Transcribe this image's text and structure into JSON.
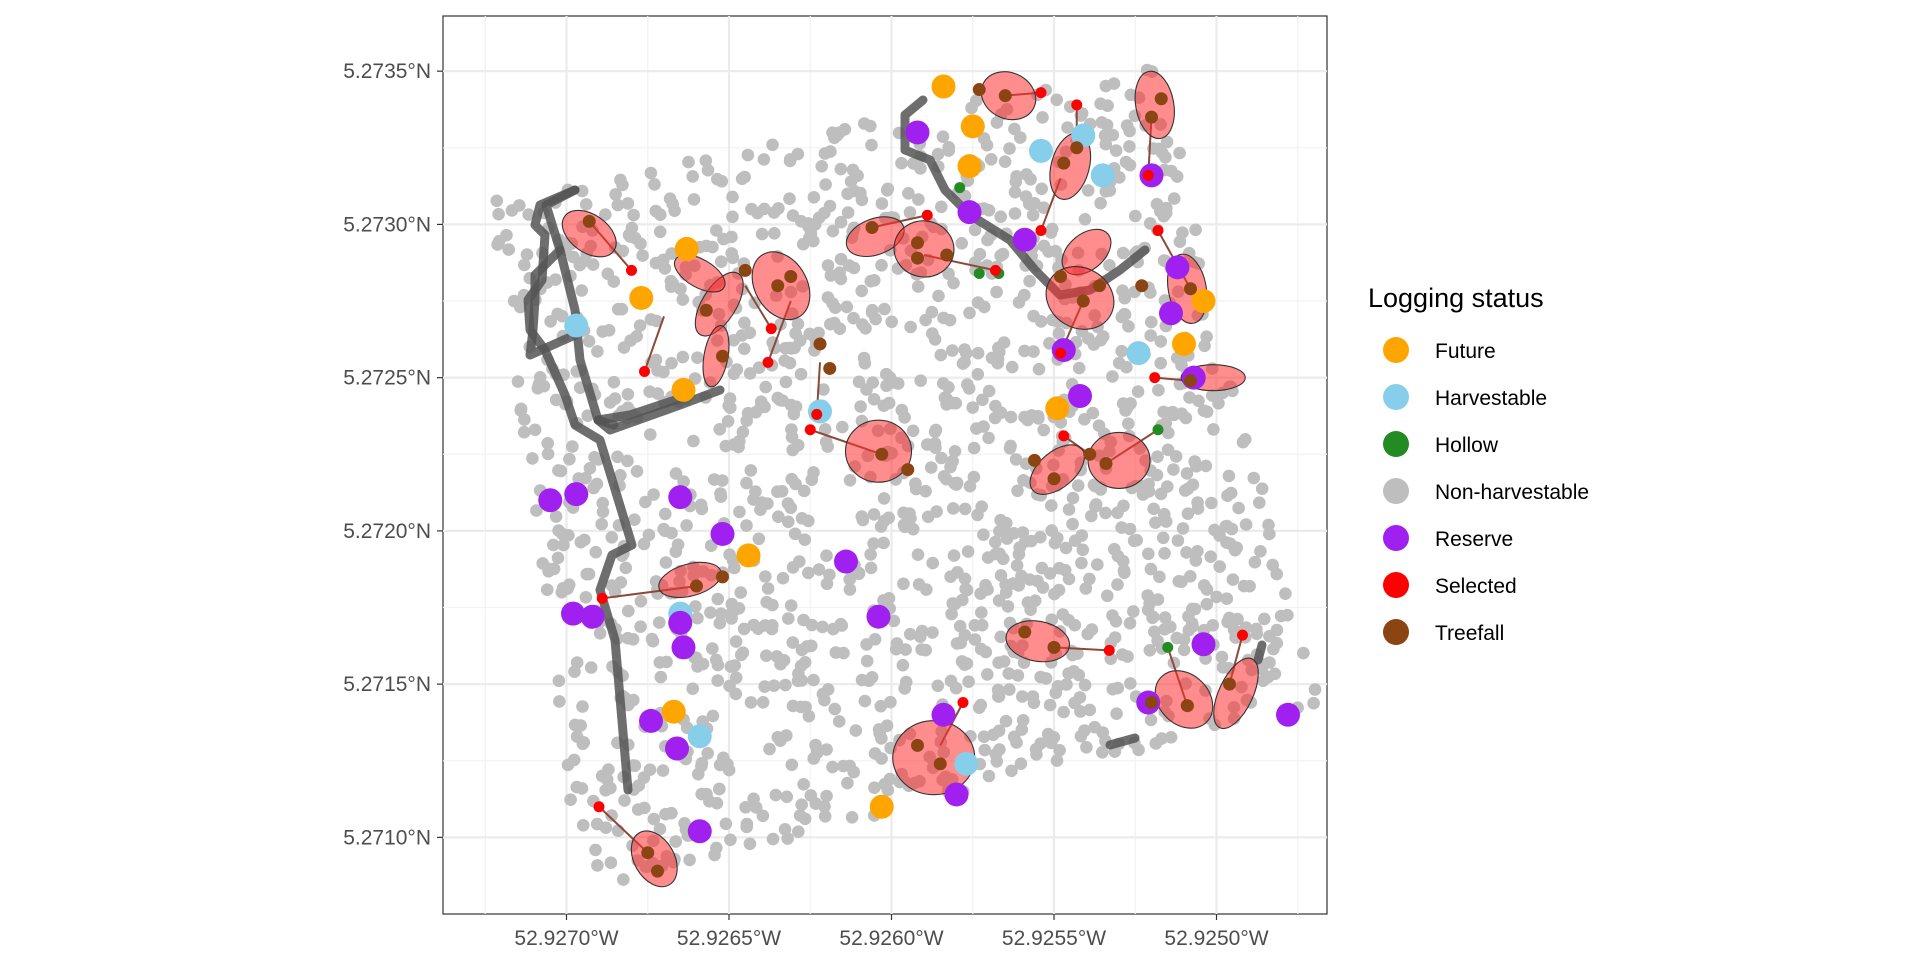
{
  "chart_data": {
    "type": "scatter",
    "title": "",
    "xlabel": "",
    "ylabel": "",
    "x_ticks": [
      "52.9270°W",
      "52.9265°W",
      "52.9260°W",
      "52.9255°W",
      "52.9250°W"
    ],
    "x_tick_values": [
      -52.927,
      -52.9265,
      -52.926,
      -52.9255,
      -52.925
    ],
    "y_ticks": [
      "5.2735°N",
      "5.2730°N",
      "5.2725°N",
      "5.2720°N",
      "5.2715°N",
      "5.2710°N"
    ],
    "y_tick_values": [
      5.2735,
      5.273,
      5.2725,
      5.272,
      5.2715,
      5.271
    ],
    "xlim": [
      -52.92738,
      -52.92466
    ],
    "ylim": [
      5.27075,
      5.27368
    ],
    "grid": true,
    "legend": {
      "title": "Logging status",
      "position": "right",
      "entries": [
        {
          "label": "Future",
          "color": "#FFA500"
        },
        {
          "label": "Harvestable",
          "color": "#87CEEB"
        },
        {
          "label": "Hollow",
          "color": "#228B22"
        },
        {
          "label": "Non-harvestable",
          "color": "#BEBEBE"
        },
        {
          "label": "Reserve",
          "color": "#A020F0"
        },
        {
          "label": "Selected",
          "color": "#FF0000"
        },
        {
          "label": "Treefall",
          "color": "#8B4513"
        }
      ]
    },
    "plot_area": {
      "outline": [
        [
          -52.92723,
          5.27308
        ],
        [
          -52.92518,
          5.27353
        ],
        [
          -52.92468,
          5.27143
        ],
        [
          -52.92695,
          5.27082
        ]
      ],
      "background_points": 1600,
      "background_color": "#BEBEBE"
    },
    "series": [
      {
        "name": "Future",
        "color": "#FFA500",
        "points": [
          [
            -52.92584,
            5.27345
          ],
          [
            -52.92575,
            5.27332
          ],
          [
            -52.92576,
            5.27319
          ],
          [
            -52.92663,
            5.27292
          ],
          [
            -52.92677,
            5.27276
          ],
          [
            -52.92664,
            5.27246
          ],
          [
            -52.92504,
            5.27275
          ],
          [
            -52.9251,
            5.27261
          ],
          [
            -52.92549,
            5.2724
          ],
          [
            -52.92644,
            5.27192
          ],
          [
            -52.92667,
            5.27141
          ],
          [
            -52.92603,
            5.2711
          ]
        ]
      },
      {
        "name": "Harvestable",
        "color": "#87CEEB",
        "points": [
          [
            -52.92697,
            5.27267
          ],
          [
            -52.92554,
            5.27324
          ],
          [
            -52.92535,
            5.27316
          ],
          [
            -52.92541,
            5.27329
          ],
          [
            -52.92524,
            5.27258
          ],
          [
            -52.92622,
            5.27239
          ],
          [
            -52.92665,
            5.27173
          ],
          [
            -52.92659,
            5.27133
          ],
          [
            -52.92577,
            5.27124
          ]
        ]
      },
      {
        "name": "Hollow",
        "color": "#228B22",
        "points": [
          [
            -52.92579,
            5.27312
          ],
          [
            -52.92567,
            5.27284
          ],
          [
            -52.92573,
            5.27284
          ],
          [
            -52.92518,
            5.27233
          ],
          [
            -52.92515,
            5.27162
          ]
        ]
      },
      {
        "name": "Reserve",
        "color": "#A020F0",
        "points": [
          [
            -52.92592,
            5.2733
          ],
          [
            -52.92576,
            5.27304
          ],
          [
            -52.92559,
            5.27295
          ],
          [
            -52.9252,
            5.27316
          ],
          [
            -52.92512,
            5.27286
          ],
          [
            -52.92514,
            5.27271
          ],
          [
            -52.92507,
            5.2725
          ],
          [
            -52.92547,
            5.27259
          ],
          [
            -52.92542,
            5.27244
          ],
          [
            -52.92697,
            5.27212
          ],
          [
            -52.92705,
            5.2721
          ],
          [
            -52.92665,
            5.27211
          ],
          [
            -52.92652,
            5.27199
          ],
          [
            -52.92614,
            5.2719
          ],
          [
            -52.92604,
            5.27172
          ],
          [
            -52.92698,
            5.27173
          ],
          [
            -52.92692,
            5.27172
          ],
          [
            -52.92665,
            5.2717
          ],
          [
            -52.92664,
            5.27162
          ],
          [
            -52.92674,
            5.27138
          ],
          [
            -52.92666,
            5.27129
          ],
          [
            -52.92659,
            5.27102
          ],
          [
            -52.92584,
            5.2714
          ],
          [
            -52.9258,
            5.27114
          ],
          [
            -52.92521,
            5.27144
          ],
          [
            -52.92504,
            5.27163
          ],
          [
            -52.92478,
            5.2714
          ]
        ]
      },
      {
        "name": "Selected",
        "color": "#FF0000",
        "points": [
          [
            -52.92554,
            5.27343
          ],
          [
            -52.92543,
            5.27339
          ],
          [
            -52.92521,
            5.27316
          ],
          [
            -52.92589,
            5.27303
          ],
          [
            -52.92518,
            5.27298
          ],
          [
            -52.92554,
            5.27298
          ],
          [
            -52.92568,
            5.27285
          ],
          [
            -52.9268,
            5.27285
          ],
          [
            -52.92676,
            5.27252
          ],
          [
            -52.92638,
            5.27255
          ],
          [
            -52.92637,
            5.27266
          ],
          [
            -52.92623,
            5.27238
          ],
          [
            -52.92625,
            5.27233
          ],
          [
            -52.92547,
            5.27231
          ],
          [
            -52.92548,
            5.27258
          ],
          [
            -52.92519,
            5.2725
          ],
          [
            -52.92689,
            5.27178
          ],
          [
            -52.92533,
            5.27161
          ],
          [
            -52.92578,
            5.27144
          ],
          [
            -52.9269,
            5.2711
          ],
          [
            -52.92492,
            5.27166
          ]
        ]
      },
      {
        "name": "Treefall",
        "color": "#8B4513",
        "points": [
          [
            -52.92573,
            5.27344
          ],
          [
            -52.92565,
            5.27342
          ],
          [
            -52.92543,
            5.27325
          ],
          [
            -52.92547,
            5.2732
          ],
          [
            -52.9252,
            5.27335
          ],
          [
            -52.92517,
            5.27341
          ],
          [
            -52.92693,
            5.27301
          ],
          [
            -52.92645,
            5.27285
          ],
          [
            -52.92635,
            5.2728
          ],
          [
            -52.92631,
            5.27283
          ],
          [
            -52.92606,
            5.27299
          ],
          [
            -52.92592,
            5.27294
          ],
          [
            -52.92592,
            5.27289
          ],
          [
            -52.92583,
            5.2729
          ],
          [
            -52.92548,
            5.27283
          ],
          [
            -52.92541,
            5.27275
          ],
          [
            -52.92536,
            5.2728
          ],
          [
            -52.92523,
            5.2728
          ],
          [
            -52.92508,
            5.27279
          ],
          [
            -52.92657,
            5.27272
          ],
          [
            -52.92652,
            5.27257
          ],
          [
            -52.92622,
            5.27261
          ],
          [
            -52.92619,
            5.27253
          ],
          [
            -52.92603,
            5.27225
          ],
          [
            -52.92595,
            5.2722
          ],
          [
            -52.92556,
            5.27223
          ],
          [
            -52.9255,
            5.27217
          ],
          [
            -52.92539,
            5.27225
          ],
          [
            -52.92534,
            5.27222
          ],
          [
            -52.92508,
            5.27249
          ],
          [
            -52.9266,
            5.27182
          ],
          [
            -52.92652,
            5.27185
          ],
          [
            -52.92559,
            5.27167
          ],
          [
            -52.9255,
            5.27162
          ],
          [
            -52.9252,
            5.27144
          ],
          [
            -52.92509,
            5.27143
          ],
          [
            -52.92496,
            5.2715
          ],
          [
            -52.92592,
            5.2713
          ],
          [
            -52.92585,
            5.27124
          ],
          [
            -52.92675,
            5.27095
          ],
          [
            -52.92672,
            5.27089
          ]
        ]
      }
    ]
  }
}
